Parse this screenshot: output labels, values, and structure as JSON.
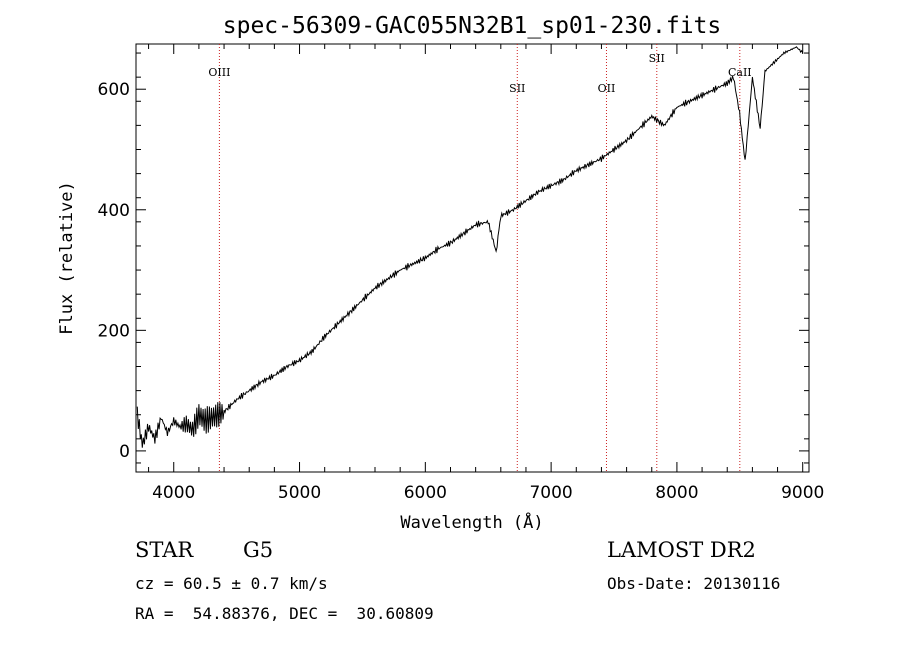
{
  "chart_data": {
    "type": "line",
    "title": "spec-56309-GAC055N32B1_sp01-230.fits",
    "xlabel": "Wavelength (Å)",
    "ylabel": "Flux (relative)",
    "xlim": [
      3700,
      9050
    ],
    "ylim": [
      -35,
      675
    ],
    "xticks": [
      4000,
      5000,
      6000,
      7000,
      8000,
      9000
    ],
    "xtick_labels": [
      "4000",
      "5000",
      "6000",
      "7000",
      "8000",
      "9000"
    ],
    "yticks": [
      0,
      200,
      400,
      600
    ],
    "ytick_labels": [
      "0",
      "200",
      "400",
      "600"
    ],
    "grid": false,
    "line_color": "#000000",
    "series": [
      {
        "x": [
          3710,
          3750,
          3800,
          3850,
          3900,
          3950,
          4000,
          4050,
          4100,
          4150,
          4200,
          4250,
          4300,
          4350,
          4400,
          4500,
          4600,
          4700,
          4800,
          4900,
          5000,
          5100,
          5200,
          5300,
          5400,
          5500,
          5600,
          5700,
          5800,
          5900,
          6000,
          6100,
          6200,
          6300,
          6400,
          6500,
          6563,
          6600,
          6700,
          6800,
          6900,
          7000,
          7100,
          7200,
          7300,
          7400,
          7500,
          7600,
          7700,
          7800,
          7900,
          8000,
          8100,
          8200,
          8300,
          8400,
          8450,
          8498,
          8542,
          8600,
          8662,
          8700,
          8750,
          8800,
          8850,
          8900,
          8950,
          9000
        ],
        "y": [
          60,
          10,
          40,
          20,
          55,
          30,
          50,
          40,
          45,
          35,
          60,
          50,
          55,
          60,
          65,
          85,
          100,
          115,
          125,
          140,
          150,
          165,
          190,
          210,
          230,
          250,
          270,
          285,
          300,
          310,
          320,
          335,
          345,
          360,
          375,
          380,
          330,
          390,
          400,
          415,
          430,
          440,
          450,
          465,
          475,
          485,
          500,
          515,
          535,
          555,
          540,
          570,
          580,
          590,
          600,
          610,
          620,
          560,
          480,
          620,
          535,
          630,
          640,
          650,
          660,
          665,
          670,
          660
        ]
      }
    ],
    "line_markers": [
      {
        "label": "OIII",
        "x": 4363,
        "label_y": 622
      },
      {
        "label": "SII",
        "x": 6731,
        "label_y": 595
      },
      {
        "label": "OII",
        "x": 7440,
        "label_y": 595
      },
      {
        "label": "SII",
        "x": 7840,
        "label_y": 645
      },
      {
        "label": "CaII",
        "x": 8500,
        "label_y": 622
      }
    ],
    "marker_color": "#cc2222"
  },
  "info": {
    "object_class": "STAR",
    "subclass": "G5",
    "cz": "cz = 60.5 ± 0.7 km/s",
    "coords": "RA =  54.88376, DEC =  30.60809",
    "survey": "LAMOST DR2",
    "obs_date": "Obs-Date: 20130116"
  }
}
